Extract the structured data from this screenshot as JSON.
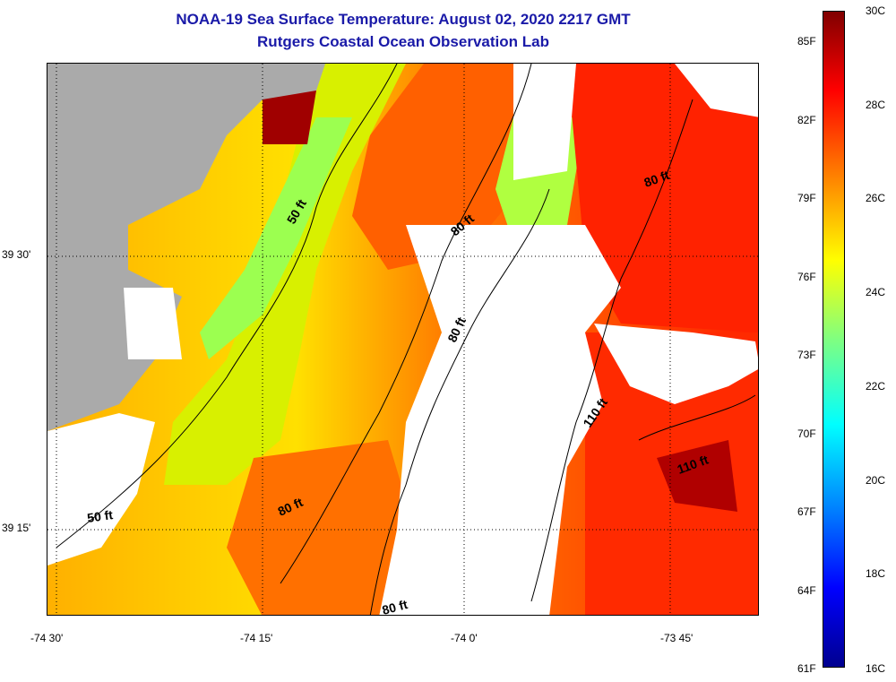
{
  "title": {
    "line1": "NOAA-19 Sea Surface Temperature:  August 02, 2020 2217 GMT",
    "line2": "Rutgers Coastal Ocean Observation Lab"
  },
  "axes": {
    "x_ticks": [
      "-74 30'",
      "-74 15'",
      "-74 0'",
      "-73 45'"
    ],
    "y_ticks": [
      "39 30'",
      "39 15'"
    ]
  },
  "contour_labels": [
    "50 ft",
    "50 ft",
    "80 ft",
    "80 ft",
    "80 ft",
    "80 ft",
    "80 ft",
    "110 ft",
    "110 ft"
  ],
  "colorbar": {
    "fahrenheit": [
      "85F",
      "82F",
      "79F",
      "76F",
      "73F",
      "70F",
      "67F",
      "64F",
      "61F"
    ],
    "celsius": [
      "30C",
      "28C",
      "26C",
      "24C",
      "22C",
      "20C",
      "18C",
      "16C"
    ]
  },
  "colors": {
    "title": "#1a1aa8",
    "land": "#aaaaaa",
    "ocean_warm": "#ff3000",
    "ocean_mid": "#ffd000",
    "ocean_cool": "#80ff80",
    "cloud": "#ffffff"
  }
}
